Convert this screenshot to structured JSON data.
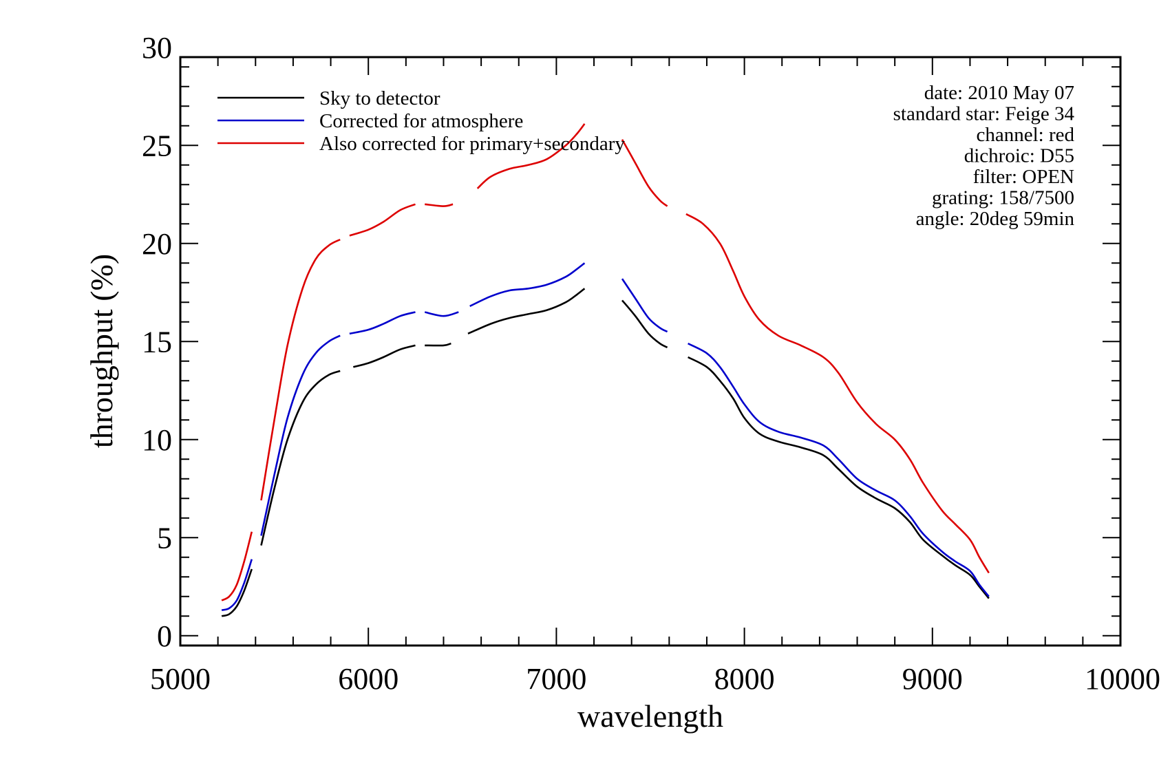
{
  "chart_data": {
    "type": "line",
    "xlabel": "wavelength",
    "ylabel": "throughput (%)",
    "xlim": [
      5000,
      10000
    ],
    "ylim": [
      -0.5,
      29.5
    ],
    "x_ticks": [
      5000,
      6000,
      7000,
      8000,
      9000,
      10000
    ],
    "y_ticks": [
      0,
      5,
      10,
      15,
      20,
      25,
      30
    ],
    "legend_placement": "top-left",
    "grid": false,
    "info_lines": [
      "date: 2010 May 07",
      "standard star: Feige 34",
      "channel: red",
      "dichroic: D55",
      "filter: OPEN",
      "grating: 158/7500",
      "angle: 20deg 59min"
    ],
    "series": [
      {
        "name": "Sky to detector",
        "color": "#000000",
        "segments": [
          [
            [
              5220,
              1.0
            ],
            [
              5260,
              1.1
            ],
            [
              5300,
              1.5
            ],
            [
              5340,
              2.3
            ],
            [
              5380,
              3.4
            ]
          ],
          [
            [
              5430,
              4.6
            ],
            [
              5500,
              7.5
            ],
            [
              5570,
              10.0
            ],
            [
              5650,
              11.9
            ],
            [
              5720,
              12.8
            ],
            [
              5790,
              13.3
            ],
            [
              5850,
              13.5
            ]
          ],
          [
            [
              5920,
              13.7
            ],
            [
              6000,
              13.9
            ],
            [
              6080,
              14.2
            ],
            [
              6170,
              14.6
            ],
            [
              6250,
              14.8
            ]
          ],
          [
            [
              6300,
              14.8
            ],
            [
              6400,
              14.8
            ],
            [
              6440,
              14.9
            ]
          ],
          [
            [
              6530,
              15.4
            ],
            [
              6650,
              15.9
            ],
            [
              6750,
              16.2
            ],
            [
              6850,
              16.4
            ],
            [
              6950,
              16.6
            ],
            [
              7050,
              17.0
            ],
            [
              7110,
              17.4
            ],
            [
              7150,
              17.7
            ]
          ],
          [
            [
              7350,
              17.1
            ],
            [
              7420,
              16.3
            ],
            [
              7490,
              15.4
            ],
            [
              7550,
              14.9
            ],
            [
              7590,
              14.7
            ]
          ],
          [
            [
              7700,
              14.2
            ],
            [
              7800,
              13.7
            ],
            [
              7870,
              13.0
            ],
            [
              7940,
              12.1
            ],
            [
              8000,
              11.1
            ],
            [
              8080,
              10.3
            ],
            [
              8180,
              9.9
            ],
            [
              8300,
              9.6
            ],
            [
              8420,
              9.2
            ],
            [
              8500,
              8.5
            ],
            [
              8600,
              7.6
            ],
            [
              8700,
              7.0
            ],
            [
              8800,
              6.5
            ],
            [
              8880,
              5.8
            ],
            [
              8950,
              4.9
            ],
            [
              9050,
              4.1
            ],
            [
              9120,
              3.6
            ],
            [
              9200,
              3.1
            ],
            [
              9250,
              2.5
            ],
            [
              9300,
              1.9
            ]
          ]
        ]
      },
      {
        "name": "Corrected for atmosphere",
        "color": "#0000cc",
        "segments": [
          [
            [
              5220,
              1.3
            ],
            [
              5260,
              1.4
            ],
            [
              5300,
              1.8
            ],
            [
              5340,
              2.7
            ],
            [
              5380,
              3.9
            ]
          ],
          [
            [
              5430,
              5.1
            ],
            [
              5500,
              8.2
            ],
            [
              5570,
              11.1
            ],
            [
              5650,
              13.3
            ],
            [
              5720,
              14.4
            ],
            [
              5790,
              15.0
            ],
            [
              5850,
              15.3
            ]
          ],
          [
            [
              5900,
              15.4
            ],
            [
              6000,
              15.6
            ],
            [
              6080,
              15.9
            ],
            [
              6170,
              16.3
            ],
            [
              6250,
              16.5
            ]
          ],
          [
            [
              6300,
              16.5
            ],
            [
              6400,
              16.3
            ],
            [
              6480,
              16.5
            ]
          ],
          [
            [
              6540,
              16.8
            ],
            [
              6650,
              17.3
            ],
            [
              6750,
              17.6
            ],
            [
              6850,
              17.7
            ],
            [
              6950,
              17.9
            ],
            [
              7050,
              18.3
            ],
            [
              7110,
              18.7
            ],
            [
              7150,
              19.0
            ]
          ],
          [
            [
              7350,
              18.2
            ],
            [
              7420,
              17.2
            ],
            [
              7490,
              16.2
            ],
            [
              7550,
              15.7
            ],
            [
              7590,
              15.5
            ]
          ],
          [
            [
              7700,
              14.9
            ],
            [
              7800,
              14.4
            ],
            [
              7870,
              13.7
            ],
            [
              7940,
              12.7
            ],
            [
              8000,
              11.8
            ],
            [
              8080,
              10.9
            ],
            [
              8180,
              10.4
            ],
            [
              8300,
              10.1
            ],
            [
              8420,
              9.7
            ],
            [
              8500,
              9.0
            ],
            [
              8600,
              8.0
            ],
            [
              8700,
              7.4
            ],
            [
              8800,
              6.9
            ],
            [
              8880,
              6.1
            ],
            [
              8950,
              5.2
            ],
            [
              9050,
              4.3
            ],
            [
              9120,
              3.8
            ],
            [
              9200,
              3.3
            ],
            [
              9250,
              2.6
            ],
            [
              9300,
              2.0
            ]
          ]
        ]
      },
      {
        "name": "Also corrected for primary+secondary",
        "color": "#dd0000",
        "segments": [
          [
            [
              5220,
              1.8
            ],
            [
              5260,
              2.0
            ],
            [
              5300,
              2.6
            ],
            [
              5340,
              3.8
            ],
            [
              5380,
              5.3
            ]
          ],
          [
            [
              5430,
              6.9
            ],
            [
              5500,
              11.0
            ],
            [
              5570,
              14.8
            ],
            [
              5650,
              17.7
            ],
            [
              5720,
              19.2
            ],
            [
              5790,
              19.9
            ],
            [
              5850,
              20.2
            ]
          ],
          [
            [
              5900,
              20.4
            ],
            [
              6000,
              20.7
            ],
            [
              6080,
              21.1
            ],
            [
              6170,
              21.7
            ],
            [
              6250,
              22.0
            ]
          ],
          [
            [
              6300,
              22.0
            ],
            [
              6400,
              21.9
            ],
            [
              6450,
              22.0
            ]
          ],
          [
            [
              6580,
              22.8
            ],
            [
              6650,
              23.4
            ],
            [
              6750,
              23.8
            ],
            [
              6850,
              24.0
            ],
            [
              6950,
              24.3
            ],
            [
              7050,
              25.0
            ],
            [
              7110,
              25.6
            ],
            [
              7150,
              26.1
            ]
          ],
          [
            [
              7350,
              25.3
            ],
            [
              7420,
              24.1
            ],
            [
              7490,
              22.9
            ],
            [
              7550,
              22.2
            ],
            [
              7590,
              21.9
            ]
          ],
          [
            [
              7690,
              21.5
            ],
            [
              7780,
              21.0
            ],
            [
              7870,
              20.0
            ],
            [
              7940,
              18.6
            ],
            [
              8000,
              17.3
            ],
            [
              8080,
              16.1
            ],
            [
              8180,
              15.3
            ],
            [
              8300,
              14.8
            ],
            [
              8420,
              14.2
            ],
            [
              8500,
              13.4
            ],
            [
              8600,
              11.9
            ],
            [
              8700,
              10.8
            ],
            [
              8800,
              10.0
            ],
            [
              8880,
              9.0
            ],
            [
              8950,
              7.8
            ],
            [
              9050,
              6.4
            ],
            [
              9120,
              5.7
            ],
            [
              9200,
              4.9
            ],
            [
              9250,
              4.0
            ],
            [
              9300,
              3.2
            ]
          ]
        ]
      }
    ]
  }
}
